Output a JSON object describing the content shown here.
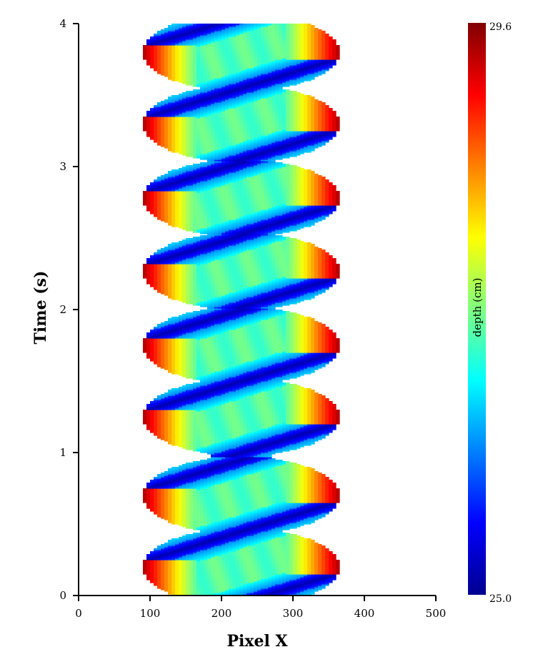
{
  "chart_data": {
    "type": "heatmap",
    "title": "",
    "xlabel": "Pixel X",
    "ylabel": "Time (s)",
    "xlim": [
      0,
      500
    ],
    "ylim": [
      0,
      4
    ],
    "x_ticks": [
      "0",
      "100",
      "200",
      "300",
      "400",
      "500"
    ],
    "y_ticks": [
      "0",
      "1",
      "2",
      "3",
      "4"
    ],
    "colorbar": {
      "label": "depth (cm)",
      "min_label": "25.0",
      "max_label": "29.6",
      "min": 25.0,
      "max": 29.6,
      "colormap": "jet"
    },
    "pattern": {
      "period_s": 0.5,
      "lobe_centers_s": [
        0.2,
        0.7,
        1.25,
        1.75,
        2.27,
        2.78,
        3.3,
        3.8
      ],
      "lobe_half_height_s": 0.27,
      "lobe_x_range": [
        90,
        365
      ],
      "neck_x_range": [
        183,
        270
      ],
      "typical_depth_cm": 27.1,
      "deep_edge_depth_cm": 29.2,
      "shallow_band_depth_cm": 25.2
    },
    "grid": false,
    "legend": "colorbar-right"
  }
}
